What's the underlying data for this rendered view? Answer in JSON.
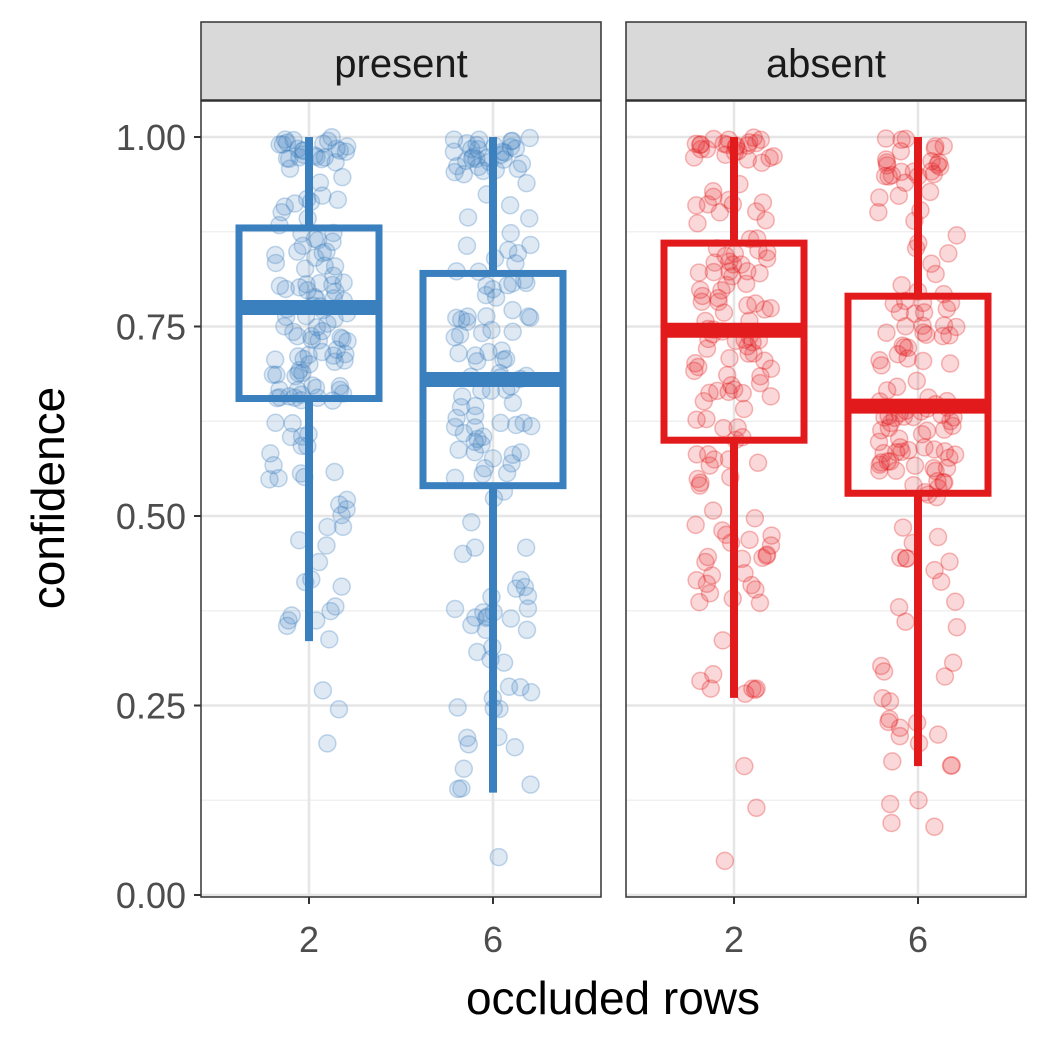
{
  "chart_data": {
    "type": "boxplot",
    "xlabel": "occluded rows",
    "ylabel": "confidence",
    "ylim": [
      0,
      1
    ],
    "y_ticks": [
      "0.00",
      "0.25",
      "0.50",
      "0.75",
      "1.00"
    ],
    "categories": [
      "2",
      "6"
    ],
    "grid": true,
    "points_jittered": true,
    "facets": [
      {
        "label": "present",
        "color": "#3a7fbe",
        "boxes": [
          {
            "x": "2",
            "whisker_low": 0.335,
            "q1": 0.655,
            "median": 0.775,
            "q3": 0.88,
            "whisker_high": 1.0
          },
          {
            "x": "6",
            "whisker_low": 0.135,
            "q1": 0.54,
            "median": 0.68,
            "q3": 0.82,
            "whisker_high": 1.0
          }
        ],
        "outliers": [
          {
            "x": "2",
            "y": 0.27
          },
          {
            "x": "2",
            "y": 0.245
          },
          {
            "x": "2",
            "y": 0.2
          },
          {
            "x": "6",
            "y": 0.05
          }
        ]
      },
      {
        "label": "absent",
        "color": "#e31a1c",
        "boxes": [
          {
            "x": "2",
            "whisker_low": 0.26,
            "q1": 0.6,
            "median": 0.745,
            "q3": 0.86,
            "whisker_high": 1.0
          },
          {
            "x": "6",
            "whisker_low": 0.17,
            "q1": 0.53,
            "median": 0.645,
            "q3": 0.79,
            "whisker_high": 1.0
          }
        ],
        "outliers": [
          {
            "x": "2",
            "y": 0.17
          },
          {
            "x": "2",
            "y": 0.115
          },
          {
            "x": "2",
            "y": 0.045
          },
          {
            "x": "6",
            "y": 0.125
          },
          {
            "x": "6",
            "y": 0.12
          },
          {
            "x": "6",
            "y": 0.095
          },
          {
            "x": "6",
            "y": 0.09
          }
        ]
      }
    ]
  }
}
